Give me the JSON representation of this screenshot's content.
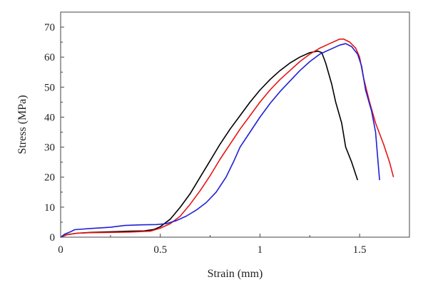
{
  "chart_data": {
    "type": "line",
    "xlabel": "Strain (mm)",
    "ylabel": "Stress (MPa)",
    "xlim": [
      0,
      1.75
    ],
    "ylim": [
      0,
      75
    ],
    "xticks": [
      0,
      0.5,
      1,
      1.5
    ],
    "xtick_labels": [
      "0",
      "0.5",
      "1",
      "1.5"
    ],
    "yticks": [
      0,
      10,
      20,
      30,
      40,
      50,
      60,
      70
    ],
    "ytick_labels": [
      "0",
      "10",
      "20",
      "30",
      "40",
      "50",
      "60",
      "70"
    ],
    "grid": false,
    "legend": "none",
    "series": [
      {
        "color": "#000000",
        "points": [
          [
            0,
            0
          ],
          [
            0.03,
            0.8
          ],
          [
            0.08,
            1.3
          ],
          [
            0.15,
            1.6
          ],
          [
            0.25,
            1.8
          ],
          [
            0.35,
            2.0
          ],
          [
            0.42,
            2.1
          ],
          [
            0.47,
            2.6
          ],
          [
            0.5,
            3.5
          ],
          [
            0.55,
            6.0
          ],
          [
            0.6,
            10.0
          ],
          [
            0.65,
            14.5
          ],
          [
            0.7,
            20.0
          ],
          [
            0.75,
            25.5
          ],
          [
            0.8,
            31.0
          ],
          [
            0.85,
            36.0
          ],
          [
            0.9,
            40.5
          ],
          [
            0.95,
            45.0
          ],
          [
            1.0,
            49.0
          ],
          [
            1.05,
            52.5
          ],
          [
            1.1,
            55.5
          ],
          [
            1.15,
            58.0
          ],
          [
            1.2,
            60.0
          ],
          [
            1.25,
            61.5
          ],
          [
            1.29,
            62.0
          ],
          [
            1.31,
            61.5
          ],
          [
            1.33,
            58.0
          ],
          [
            1.36,
            51.0
          ],
          [
            1.38,
            45.0
          ],
          [
            1.41,
            38.0
          ],
          [
            1.43,
            30.0
          ],
          [
            1.46,
            25.0
          ],
          [
            1.49,
            19.0
          ]
        ]
      },
      {
        "color": "#e81414",
        "points": [
          [
            0,
            0
          ],
          [
            0.03,
            0.8
          ],
          [
            0.08,
            1.3
          ],
          [
            0.15,
            1.5
          ],
          [
            0.25,
            1.6
          ],
          [
            0.35,
            1.7
          ],
          [
            0.45,
            2.0
          ],
          [
            0.5,
            3.0
          ],
          [
            0.55,
            4.5
          ],
          [
            0.6,
            7.0
          ],
          [
            0.65,
            11.0
          ],
          [
            0.7,
            15.5
          ],
          [
            0.75,
            20.5
          ],
          [
            0.8,
            26.0
          ],
          [
            0.85,
            31.0
          ],
          [
            0.9,
            36.0
          ],
          [
            0.95,
            40.5
          ],
          [
            1.0,
            45.0
          ],
          [
            1.05,
            49.0
          ],
          [
            1.1,
            52.5
          ],
          [
            1.15,
            55.5
          ],
          [
            1.2,
            58.5
          ],
          [
            1.25,
            61.0
          ],
          [
            1.3,
            63.0
          ],
          [
            1.35,
            64.5
          ],
          [
            1.4,
            66.0
          ],
          [
            1.42,
            66.0
          ],
          [
            1.45,
            65.0
          ],
          [
            1.48,
            63.0
          ],
          [
            1.5,
            60.0
          ],
          [
            1.52,
            53.0
          ],
          [
            1.55,
            45.0
          ],
          [
            1.58,
            38.0
          ],
          [
            1.62,
            31.0
          ],
          [
            1.65,
            25.0
          ],
          [
            1.67,
            20.0
          ]
        ]
      },
      {
        "color": "#1f1fd6",
        "points": [
          [
            0,
            0
          ],
          [
            0.02,
            1.0
          ],
          [
            0.05,
            1.8
          ],
          [
            0.07,
            2.5
          ],
          [
            0.15,
            2.9
          ],
          [
            0.25,
            3.3
          ],
          [
            0.32,
            3.9
          ],
          [
            0.4,
            4.1
          ],
          [
            0.48,
            4.2
          ],
          [
            0.53,
            4.5
          ],
          [
            0.58,
            5.5
          ],
          [
            0.63,
            7.0
          ],
          [
            0.68,
            9.0
          ],
          [
            0.73,
            11.5
          ],
          [
            0.78,
            15.0
          ],
          [
            0.83,
            20.0
          ],
          [
            0.87,
            25.5
          ],
          [
            0.9,
            30.0
          ],
          [
            0.95,
            35.0
          ],
          [
            1.0,
            40.0
          ],
          [
            1.05,
            44.5
          ],
          [
            1.1,
            48.5
          ],
          [
            1.15,
            52.0
          ],
          [
            1.2,
            55.5
          ],
          [
            1.25,
            58.5
          ],
          [
            1.3,
            61.0
          ],
          [
            1.35,
            62.5
          ],
          [
            1.4,
            64.0
          ],
          [
            1.43,
            64.5
          ],
          [
            1.46,
            63.5
          ],
          [
            1.49,
            61.0
          ],
          [
            1.51,
            57.0
          ],
          [
            1.53,
            49.0
          ],
          [
            1.56,
            42.0
          ],
          [
            1.58,
            35.0
          ],
          [
            1.6,
            19.0
          ]
        ]
      }
    ]
  }
}
